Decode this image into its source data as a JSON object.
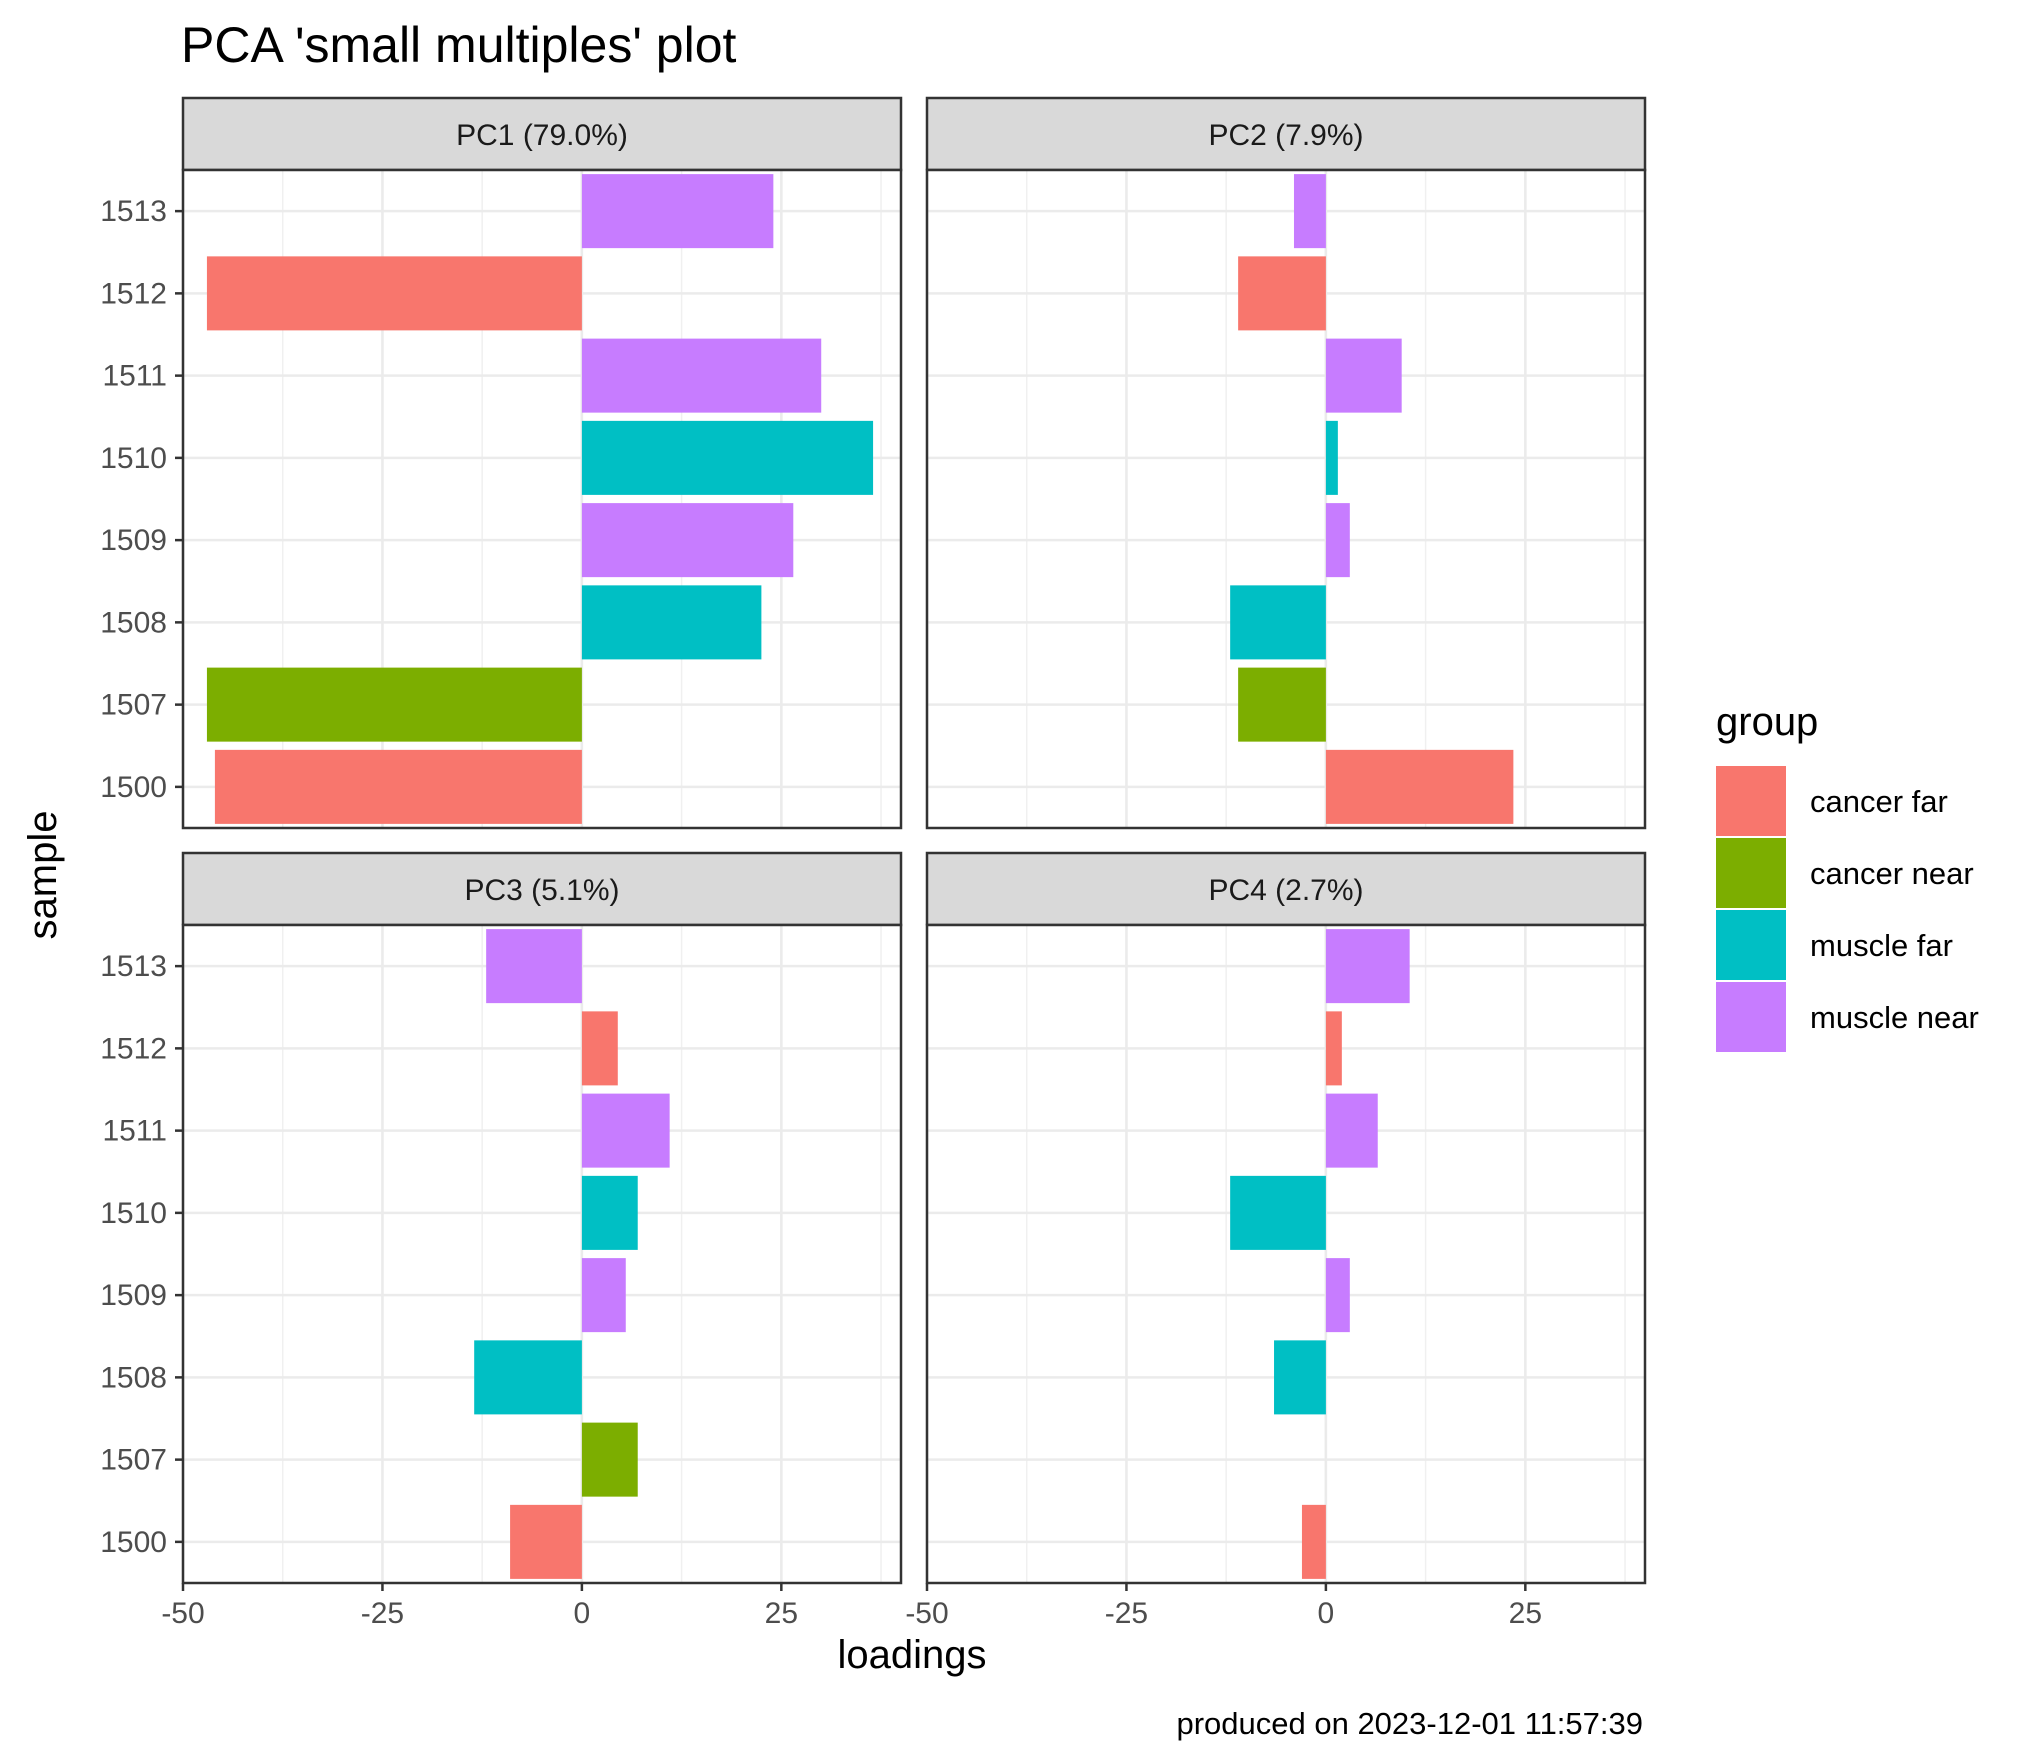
{
  "chart_data": {
    "type": "bar",
    "orientation": "horizontal",
    "title": "PCA 'small multiples' plot",
    "xlabel": "loadings",
    "ylabel": "sample",
    "caption": "produced on 2023-12-01 11:57:39",
    "xlim": [
      -50,
      40
    ],
    "x_ticks": [
      -50,
      -25,
      0,
      25
    ],
    "x_tick_labels": [
      "-50",
      "-25",
      "0",
      "25"
    ],
    "samples": [
      "1500",
      "1507",
      "1508",
      "1509",
      "1510",
      "1511",
      "1512",
      "1513"
    ],
    "sample_groups": [
      "cancer far",
      "cancer near",
      "muscle far",
      "muscle near",
      "muscle far",
      "muscle near",
      "cancer far",
      "muscle near"
    ],
    "grid": true,
    "legend": {
      "title": "group",
      "position": "right",
      "entries": [
        {
          "label": "cancer far",
          "color": "#F8766D"
        },
        {
          "label": "cancer near",
          "color": "#7CAE00"
        },
        {
          "label": "muscle far",
          "color": "#00BFC4"
        },
        {
          "label": "muscle near",
          "color": "#C77CFF"
        }
      ]
    },
    "panels": [
      {
        "label": "PC1 (79.0%)",
        "values": [
          -46,
          -47,
          22.5,
          26.5,
          36.5,
          30,
          -47,
          24
        ]
      },
      {
        "label": "PC2 (7.9%)",
        "values": [
          23.5,
          -11,
          -12,
          3,
          1.5,
          9.5,
          -11,
          -4
        ]
      },
      {
        "label": "PC3 (5.1%)",
        "values": [
          -9,
          7,
          -13.5,
          5.5,
          7,
          11,
          4.5,
          -12
        ]
      },
      {
        "label": "PC4 (2.7%)",
        "values": [
          -3,
          0,
          -6.5,
          3,
          -12,
          6.5,
          2,
          10.5
        ]
      }
    ]
  }
}
